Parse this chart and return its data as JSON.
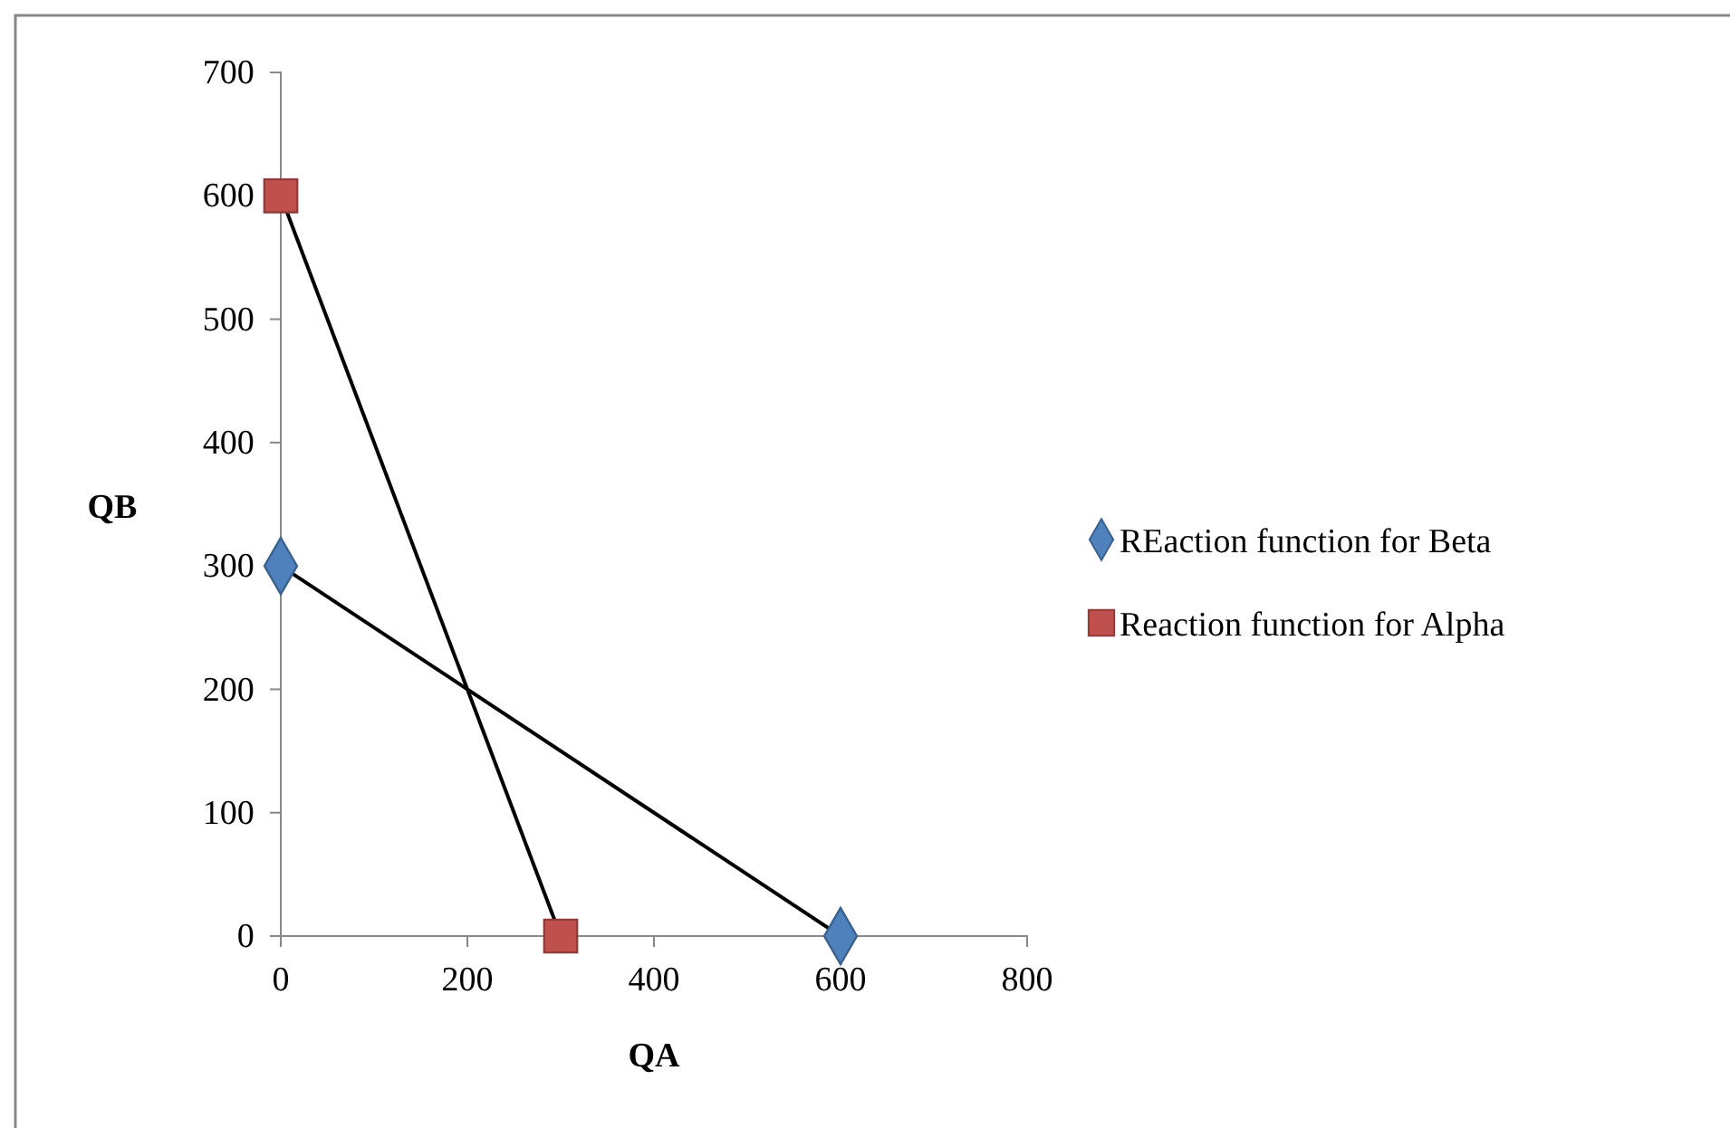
{
  "chart_data": {
    "type": "line",
    "xlabel": "QA",
    "ylabel": "QB",
    "xlim": [
      0,
      800
    ],
    "xticks": [
      0,
      200,
      400,
      600,
      800
    ],
    "ylim": [
      0,
      700
    ],
    "yticks": [
      0,
      100,
      200,
      300,
      400,
      500,
      600,
      700
    ],
    "grid": false,
    "legend": "right",
    "line_style": "solid",
    "series": [
      {
        "name": "REaction function for Beta",
        "color": "#4f81bd",
        "marker": "diamond",
        "x": [
          0,
          600
        ],
        "values": [
          300,
          0
        ]
      },
      {
        "name": "Reaction function for Alpha",
        "color": "#c0504d",
        "marker": "square",
        "x": [
          0,
          300
        ],
        "values": [
          600,
          0
        ]
      }
    ]
  }
}
